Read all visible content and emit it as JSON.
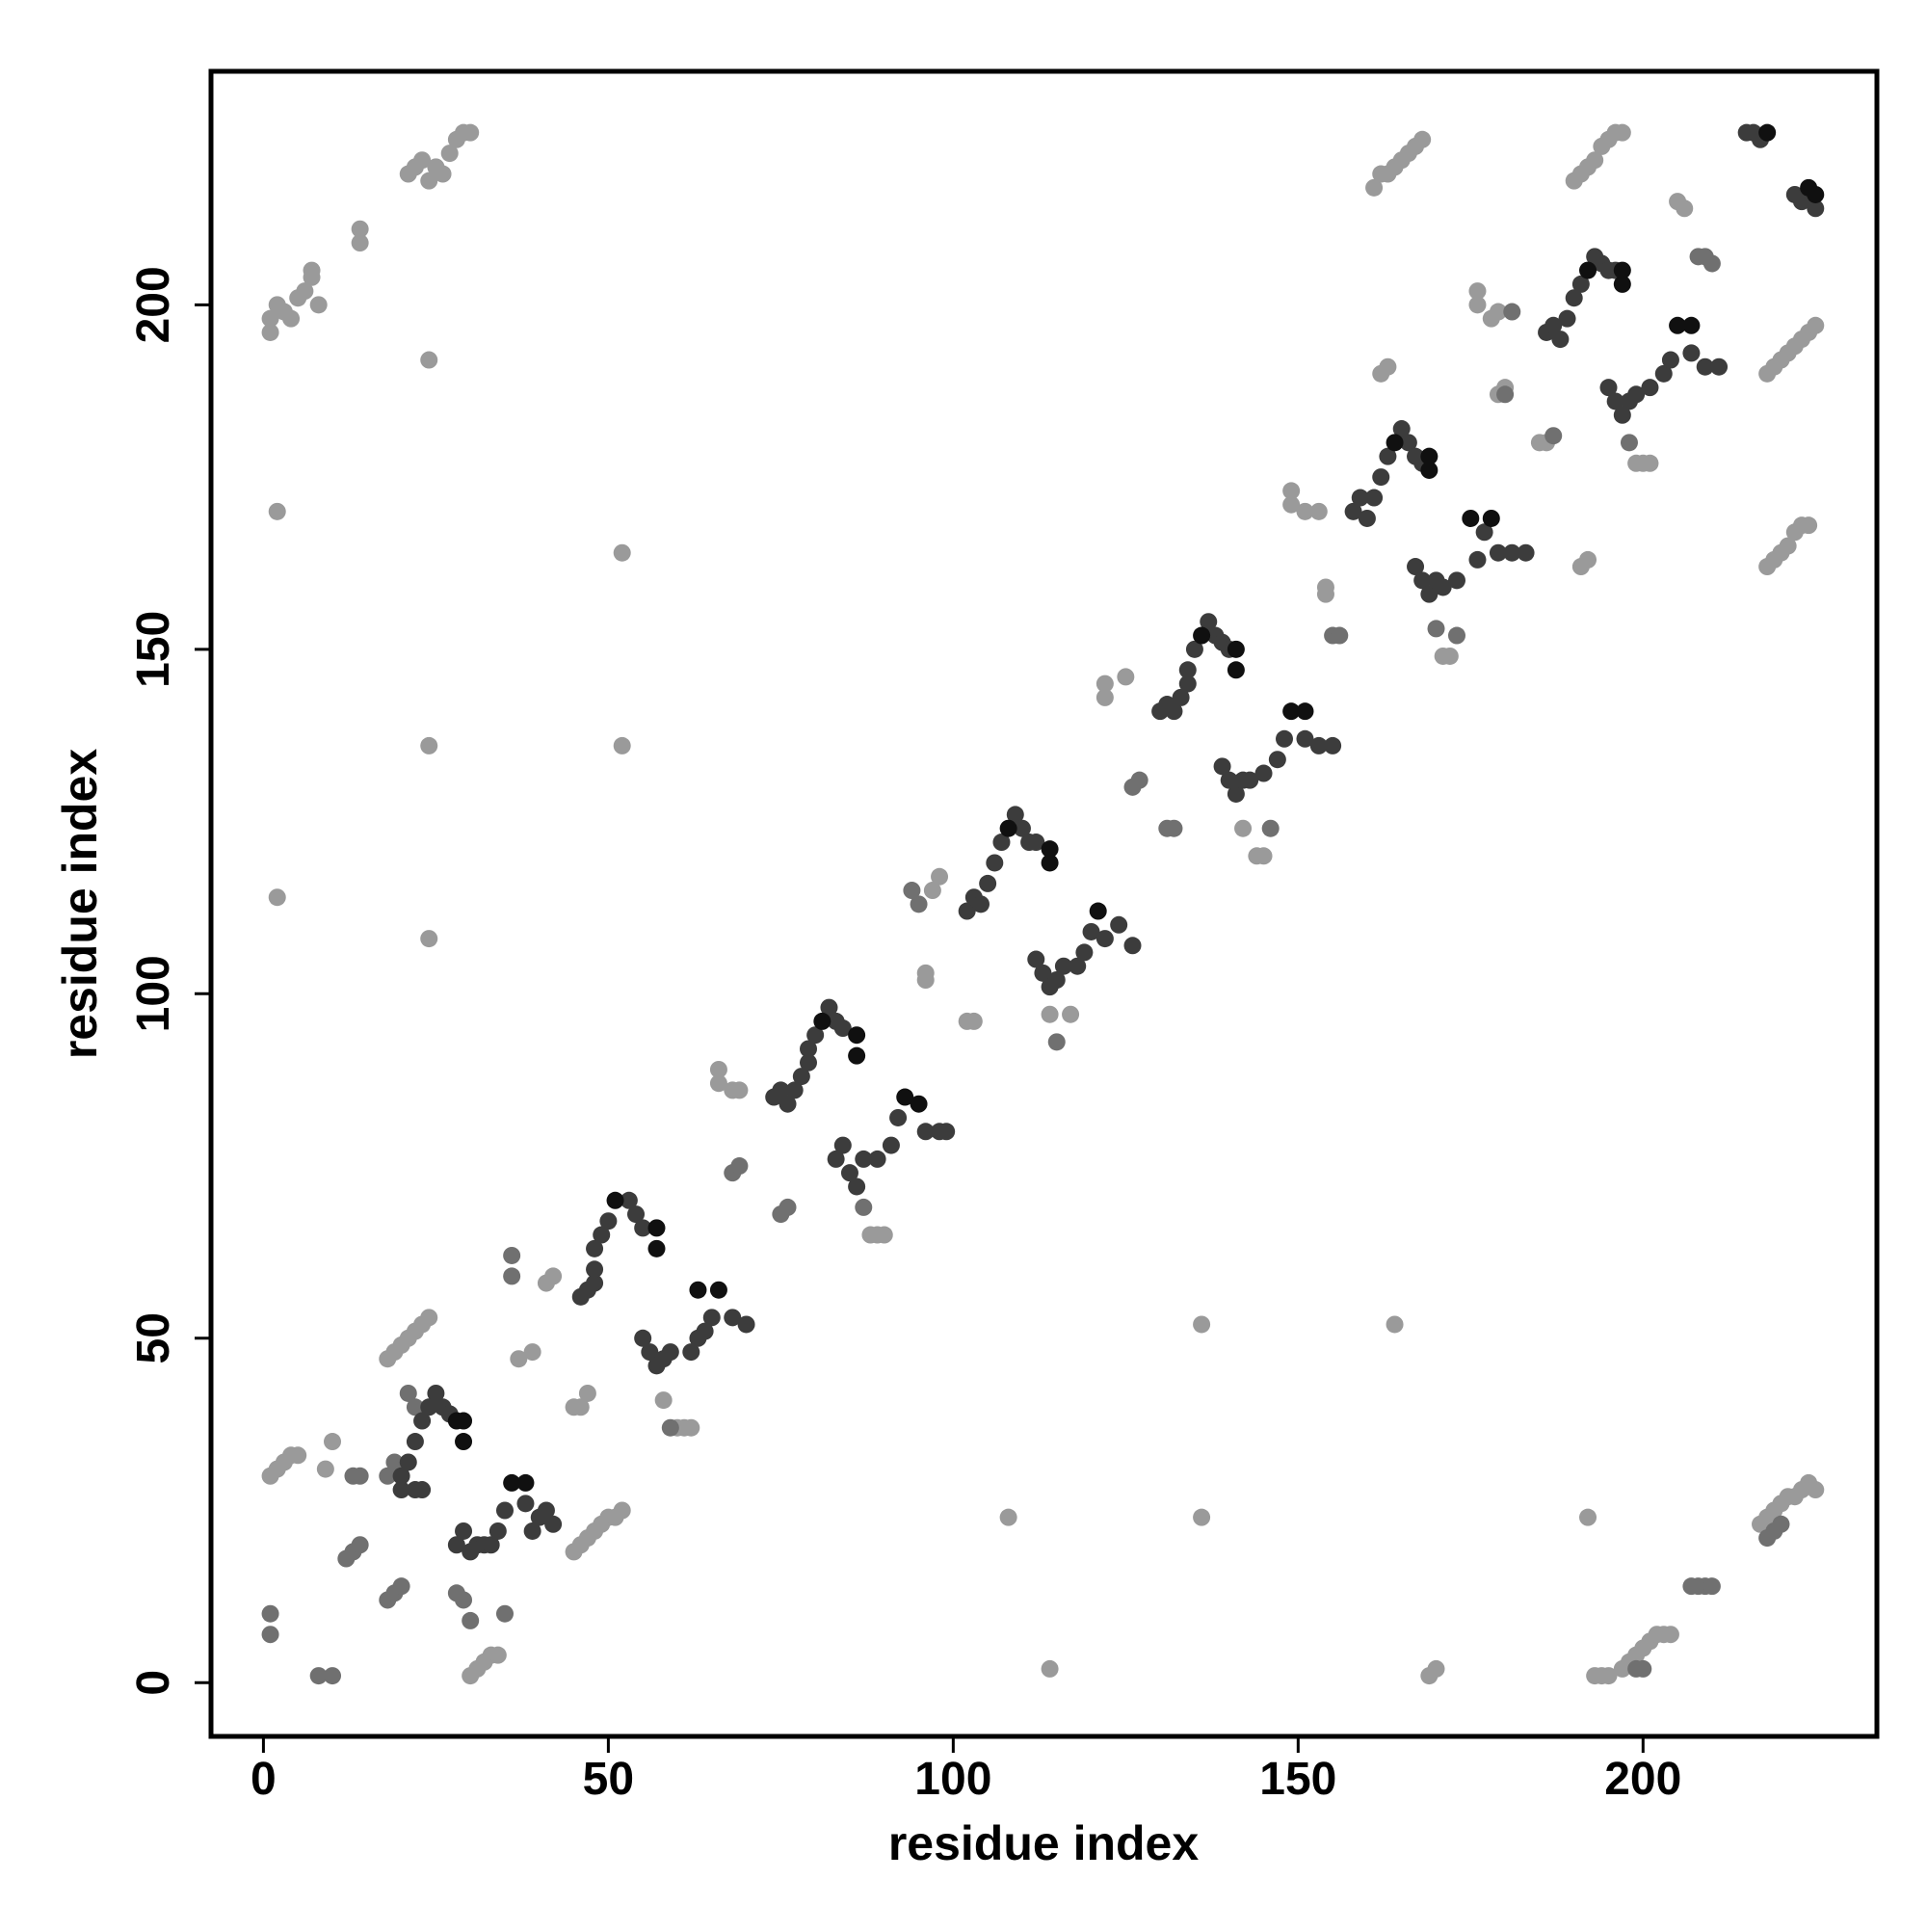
{
  "chart_data": {
    "type": "scatter",
    "x_label": "residue index",
    "y_label": "residue index",
    "xlim": [
      -7.6,
      233.9
    ],
    "ylim": [
      -7.8,
      233.9
    ],
    "xticks": [
      0,
      50,
      100,
      150,
      200
    ],
    "yticks": [
      0,
      50,
      100,
      150,
      200
    ],
    "series": [
      {
        "color": "#9a9a9a",
        "x": [
          1,
          1,
          2,
          3,
          4,
          5,
          6,
          7,
          7,
          8,
          14,
          14,
          21,
          22,
          23,
          24,
          25,
          26,
          27,
          28,
          29,
          30,
          24,
          2,
          2,
          24,
          24,
          52,
          52,
          1,
          2,
          3,
          4,
          5,
          9,
          10,
          18,
          19,
          20,
          21,
          22,
          23,
          24,
          30,
          31,
          32,
          33,
          34,
          45,
          46,
          47,
          45,
          46,
          47,
          48,
          49,
          50,
          51,
          52,
          37,
          39,
          41,
          42,
          58,
          66,
          66,
          68,
          69,
          96,
          96,
          98,
          97,
          102,
          103,
          122,
          122,
          125,
          142,
          144,
          145,
          154,
          154,
          151,
          153,
          149,
          149,
          162,
          163,
          161,
          162,
          163,
          164,
          165,
          166,
          167,
          168,
          164,
          136,
          136,
          108,
          114,
          170,
          169,
          192,
          179,
          180,
          178,
          179,
          176,
          176,
          185,
          186,
          191,
          192,
          190,
          191,
          192,
          193,
          194,
          195,
          196,
          197,
          205,
          206,
          218,
          219,
          220,
          221,
          222,
          223,
          224,
          225,
          218,
          219,
          220,
          221,
          222,
          223,
          224,
          193,
          194,
          195,
          197,
          198,
          199,
          200,
          201,
          202,
          203,
          204,
          217,
          218,
          219,
          220,
          221,
          222,
          223,
          224,
          225,
          114,
          117,
          171,
          172,
          88,
          89,
          90,
          60,
          61,
          62,
          199,
          200,
          201
        ],
        "values": [
          196,
          198,
          200,
          199,
          198,
          201,
          202,
          204,
          205,
          200,
          209,
          211,
          219,
          220,
          221,
          218,
          220,
          219,
          222,
          224,
          225,
          225,
          192,
          170,
          114,
          136,
          108,
          164,
          136,
          30,
          31,
          32,
          33,
          33,
          31,
          35,
          47,
          48,
          49,
          50,
          51,
          52,
          53,
          1,
          2,
          3,
          4,
          4,
          40,
          40,
          42,
          19,
          20,
          21,
          22,
          23,
          24,
          24,
          25,
          47,
          48,
          58,
          59,
          41,
          87,
          89,
          86,
          86,
          102,
          103,
          117,
          115,
          96,
          96,
          145,
          143,
          146,
          124,
          120,
          120,
          159,
          158,
          170,
          170,
          173,
          171,
          190,
          191,
          217,
          219,
          219,
          220,
          221,
          222,
          223,
          224,
          52,
          52,
          24,
          24,
          2,
          2,
          1,
          24,
          187,
          188,
          198,
          199,
          200,
          202,
          180,
          180,
          162,
          163,
          218,
          219,
          220,
          221,
          223,
          224,
          225,
          225,
          215,
          214,
          190,
          191,
          192,
          193,
          194,
          195,
          196,
          197,
          162,
          163,
          164,
          165,
          167,
          168,
          168,
          1,
          1,
          1,
          2,
          3,
          4,
          5,
          6,
          7,
          7,
          7,
          23,
          24,
          25,
          26,
          27,
          27,
          28,
          29,
          28,
          97,
          97,
          149,
          149,
          65,
          65,
          65,
          37,
          37,
          37,
          177,
          177,
          177
        ]
      },
      {
        "color": "#707070",
        "x": [
          1,
          1,
          8,
          10,
          13,
          14,
          12,
          13,
          14,
          18,
          19,
          20,
          18,
          19,
          21,
          22,
          28,
          29,
          30,
          35,
          36,
          36,
          68,
          69,
          75,
          76,
          94,
          95,
          126,
          127,
          131,
          132,
          155,
          156,
          208,
          209,
          210,
          207,
          208,
          209,
          210,
          199,
          200,
          218,
          219,
          220,
          59,
          87,
          115,
          146,
          170,
          173,
          198,
          181,
          180,
          187
        ],
        "values": [
          10,
          7,
          1,
          1,
          30,
          30,
          18,
          19,
          20,
          12,
          13,
          14,
          30,
          32,
          42,
          40,
          13,
          12,
          9,
          10,
          59,
          62,
          74,
          75,
          68,
          69,
          115,
          113,
          130,
          131,
          124,
          124,
          152,
          152,
          207,
          207,
          206,
          14,
          14,
          14,
          14,
          2,
          2,
          21,
          22,
          23,
          37,
          69,
          93,
          124,
          153,
          152,
          180,
          199,
          187,
          181
        ]
      },
      {
        "color": "#3c3c3c",
        "x": [
          20,
          20,
          21,
          22,
          23,
          24,
          25,
          26,
          27,
          22,
          23,
          28,
          29,
          30,
          31,
          32,
          33,
          34,
          35,
          38,
          39,
          40,
          41,
          42,
          46,
          47,
          48,
          48,
          48,
          49,
          50,
          53,
          54,
          55,
          55,
          56,
          57,
          58,
          59,
          62,
          63,
          64,
          65,
          68,
          70,
          74,
          75,
          76,
          77,
          78,
          79,
          79,
          80,
          82,
          83,
          84,
          83,
          84,
          85,
          86,
          87,
          89,
          91,
          92,
          96,
          98,
          99,
          102,
          103,
          104,
          105,
          106,
          107,
          109,
          110,
          111,
          112,
          112,
          113,
          114,
          115,
          116,
          118,
          119,
          120,
          122,
          124,
          126,
          130,
          131,
          132,
          133,
          134,
          134,
          135,
          137,
          138,
          139,
          140,
          139,
          140,
          141,
          142,
          143,
          145,
          147,
          148,
          151,
          153,
          155,
          158,
          159,
          160,
          161,
          162,
          163,
          165,
          166,
          167,
          168,
          167,
          168,
          169,
          170,
          171,
          173,
          176,
          177,
          179,
          181,
          183,
          186,
          187,
          188,
          189,
          190,
          191,
          193,
          194,
          195,
          196,
          195,
          196,
          197,
          198,
          199,
          201,
          203,
          204,
          207,
          209,
          211,
          215,
          216,
          217,
          222,
          223,
          225
        ],
        "values": [
          28,
          30,
          32,
          35,
          38,
          40,
          42,
          40,
          39,
          28,
          28,
          20,
          22,
          19,
          20,
          20,
          20,
          22,
          25,
          26,
          22,
          24,
          25,
          23,
          56,
          57,
          58,
          60,
          63,
          65,
          67,
          70,
          68,
          66,
          50,
          48,
          46,
          47,
          48,
          48,
          50,
          51,
          53,
          53,
          52,
          85,
          86,
          84,
          86,
          88,
          90,
          92,
          94,
          98,
          96,
          95,
          76,
          78,
          74,
          72,
          76,
          76,
          78,
          82,
          80,
          80,
          80,
          112,
          114,
          113,
          116,
          119,
          122,
          126,
          124,
          122,
          122,
          105,
          103,
          101,
          102,
          104,
          104,
          106,
          109,
          108,
          110,
          107,
          141,
          142,
          141,
          143,
          145,
          147,
          150,
          154,
          152,
          151,
          150,
          133,
          131,
          129,
          131,
          131,
          132,
          134,
          137,
          137,
          136,
          136,
          170,
          172,
          169,
          172,
          175,
          178,
          182,
          180,
          178,
          177,
          162,
          160,
          158,
          160,
          159,
          160,
          163,
          167,
          164,
          164,
          164,
          196,
          197,
          195,
          198,
          201,
          203,
          207,
          206,
          205,
          205,
          188,
          186,
          184,
          186,
          187,
          188,
          190,
          192,
          193,
          191,
          191,
          225,
          225,
          224,
          216,
          215,
          214
        ]
      },
      {
        "color": "#101010",
        "x": [
          28,
          29,
          29,
          36,
          38,
          51,
          57,
          57,
          63,
          66,
          81,
          86,
          86,
          93,
          95,
          108,
          114,
          114,
          121,
          136,
          141,
          141,
          149,
          151,
          164,
          169,
          169,
          175,
          178,
          192,
          197,
          197,
          205,
          207,
          218,
          224,
          225
        ],
        "values": [
          38,
          38,
          35,
          29,
          29,
          70,
          66,
          63,
          57,
          57,
          96,
          91,
          94,
          85,
          84,
          124,
          119,
          121,
          112,
          152,
          150,
          147,
          141,
          141,
          180,
          176,
          178,
          169,
          169,
          205,
          203,
          205,
          197,
          197,
          225,
          217,
          216
        ]
      }
    ]
  }
}
